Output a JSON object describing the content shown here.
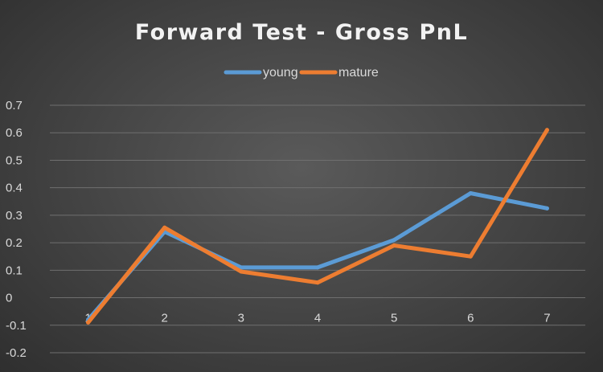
{
  "chart_data": {
    "type": "line",
    "title": "Forward Test - Gross PnL",
    "categories": [
      "1",
      "2",
      "3",
      "4",
      "5",
      "6",
      "7"
    ],
    "ylim": [
      -0.2,
      0.7
    ],
    "yticks": [
      "0.7",
      "0.6",
      "0.5",
      "0.4",
      "0.3",
      "0.2",
      "0.1",
      "0",
      "-0.1",
      "-0.2"
    ],
    "grid": true,
    "legend_position": "top",
    "series": [
      {
        "name": "young",
        "color": "#5b9bd5",
        "values": [
          -0.08,
          0.24,
          0.11,
          0.11,
          0.21,
          0.38,
          0.325
        ]
      },
      {
        "name": "mature",
        "color": "#ed7d31",
        "values": [
          -0.09,
          0.255,
          0.095,
          0.055,
          0.19,
          0.15,
          0.61
        ]
      }
    ]
  }
}
